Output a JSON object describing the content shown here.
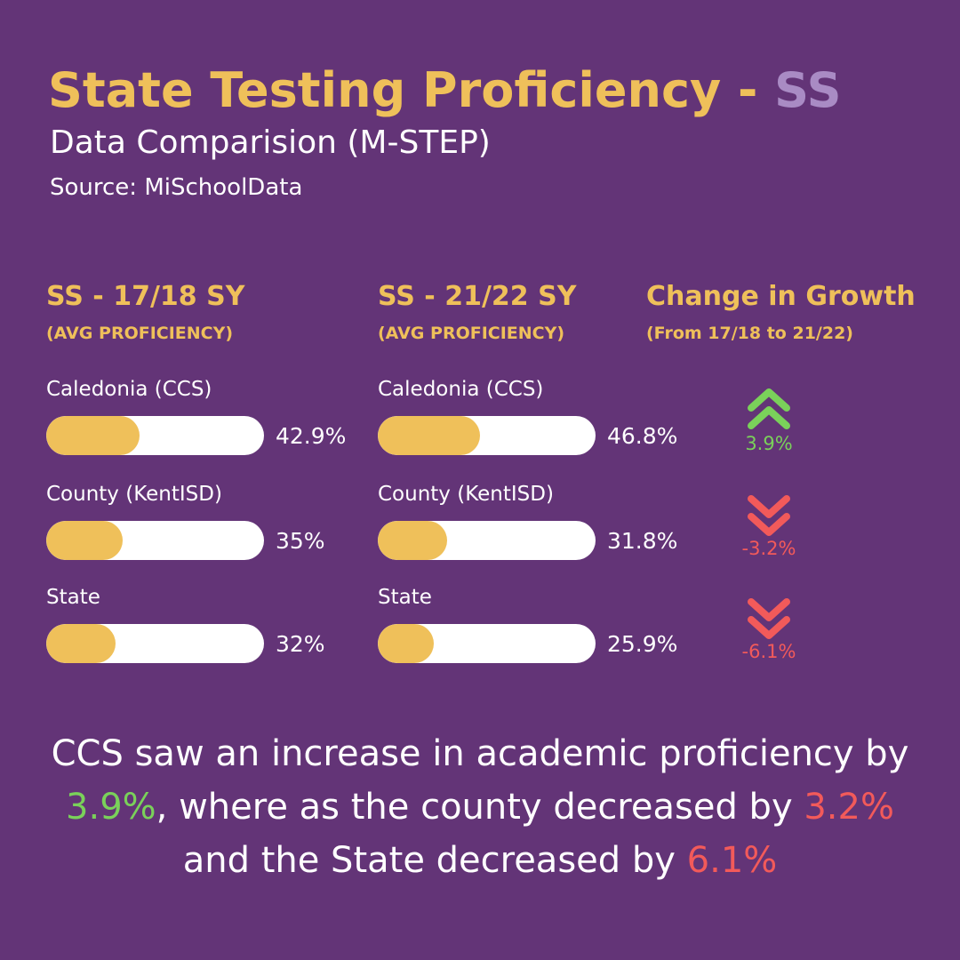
{
  "header": {
    "title_main": "State Testing Proficiency - ",
    "title_accent": "SS",
    "subtitle": "Data Comparision (M-STEP)",
    "source": "Source: MiSchoolData"
  },
  "colors": {
    "background": "#633477",
    "gold": "#efc05a",
    "accent_purple": "#a98bc4",
    "green": "#7ad15a",
    "red": "#f25a5a"
  },
  "columns": {
    "col1_title": "SS - 17/18 SY",
    "col1_sub": "(AVG PROFICIENCY)",
    "col2_title": "SS - 21/22 SY",
    "col2_sub": "(AVG PROFICIENCY)",
    "col3_title": "Change in Growth",
    "col3_sub": "(From 17/18 to 21/22)"
  },
  "chart_data": {
    "type": "bar",
    "categories": [
      "Caledonia (CCS)",
      "County (KentISD)",
      "State"
    ],
    "series": [
      {
        "name": "SS - 17/18 SY",
        "values": [
          42.9,
          35,
          32
        ],
        "labels": [
          "42.9%",
          "35%",
          "32%"
        ]
      },
      {
        "name": "SS - 21/22 SY",
        "values": [
          46.8,
          31.8,
          25.9
        ],
        "labels": [
          "46.8%",
          "31.8%",
          "25.9%"
        ]
      }
    ],
    "change": {
      "values": [
        3.9,
        -3.2,
        -6.1
      ],
      "labels": [
        "3.9%",
        "-3.2%",
        "-6.1%"
      ],
      "directions": [
        "up",
        "down",
        "down"
      ]
    },
    "xlim": [
      0,
      100
    ]
  },
  "summary": {
    "line1": "CCS saw an increase in academic proficiency by",
    "ccs_change": "3.9%",
    "mid": ", where as the county decreased by ",
    "county_change": "3.2%",
    "line3": "and the State decreased by ",
    "state_change": "6.1%"
  }
}
